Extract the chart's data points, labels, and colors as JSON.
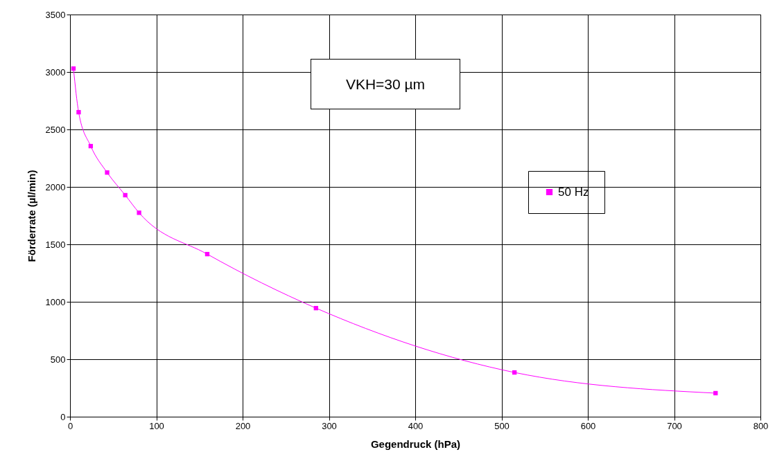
{
  "chart_data": {
    "type": "line",
    "xlabel": "Gegendruck (hPa)",
    "ylabel": "Förderrate (µl/min)",
    "annotations": [
      "VKH=30 µm"
    ],
    "x": [
      4,
      10,
      24,
      43,
      64,
      80,
      159,
      285,
      515,
      748
    ],
    "series": [
      {
        "name": "50 Hz",
        "color": "#ff00ff",
        "values": [
          3030,
          2650,
          2355,
          2125,
          1928,
          1775,
          1415,
          945,
          385,
          205
        ]
      }
    ],
    "xlim": [
      0,
      800
    ],
    "xticks": [
      0,
      100,
      200,
      300,
      400,
      500,
      600,
      700,
      800
    ],
    "ylim": [
      0,
      3500
    ],
    "yticks": [
      0,
      500,
      1000,
      1500,
      2000,
      2500,
      3000,
      3500
    ],
    "grid": true,
    "legend": "right",
    "marker": "square",
    "line_style": "solid"
  }
}
